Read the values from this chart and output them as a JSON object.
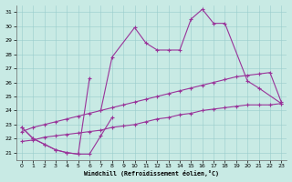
{
  "xlabel": "Windchill (Refroidissement éolien,°C)",
  "background_color": "#c8eae4",
  "grid_color": "#99cccc",
  "line_color": "#993399",
  "xlim": [
    -0.5,
    23.5
  ],
  "ylim": [
    20.5,
    31.5
  ],
  "yticks": [
    21,
    22,
    23,
    24,
    25,
    26,
    27,
    28,
    29,
    30,
    31
  ],
  "xticks": [
    0,
    1,
    2,
    3,
    4,
    5,
    6,
    7,
    8,
    9,
    10,
    11,
    12,
    13,
    14,
    15,
    16,
    17,
    18,
    19,
    20,
    21,
    22,
    23
  ],
  "series": [
    {
      "x": [
        0,
        1,
        2,
        3,
        4,
        5,
        6,
        7,
        8
      ],
      "y": [
        22.8,
        22.0,
        21.6,
        21.2,
        21.0,
        20.9,
        20.9,
        22.2,
        23.5
      ]
    },
    {
      "x": [
        7,
        8,
        10,
        11,
        12,
        13,
        14,
        15,
        16,
        17,
        18,
        20,
        21,
        23
      ],
      "y": [
        24.0,
        27.8,
        29.9,
        28.8,
        28.3,
        28.3,
        28.3,
        30.5,
        31.2,
        30.2,
        30.2,
        26.1,
        25.6,
        24.5
      ]
    },
    {
      "x": [
        0,
        1,
        2,
        3,
        4,
        5,
        6
      ],
      "y": [
        22.8,
        22.0,
        21.6,
        21.2,
        21.0,
        20.9,
        26.3
      ]
    },
    {
      "x": [
        0,
        1,
        2,
        3,
        4,
        5,
        6,
        7,
        8,
        9,
        10,
        11,
        12,
        13,
        14,
        15,
        16,
        17,
        18,
        19,
        20,
        21,
        22,
        23
      ],
      "y": [
        22.5,
        22.8,
        23.0,
        23.2,
        23.4,
        23.6,
        23.8,
        24.0,
        24.2,
        24.4,
        24.6,
        24.8,
        25.0,
        25.2,
        25.4,
        25.6,
        25.8,
        26.0,
        26.2,
        26.4,
        26.5,
        26.6,
        26.7,
        24.6
      ]
    },
    {
      "x": [
        0,
        1,
        2,
        3,
        4,
        5,
        6,
        7,
        8,
        9,
        10,
        11,
        12,
        13,
        14,
        15,
        16,
        17,
        18,
        19,
        20,
        21,
        22,
        23
      ],
      "y": [
        21.8,
        21.9,
        22.1,
        22.2,
        22.3,
        22.4,
        22.5,
        22.6,
        22.8,
        22.9,
        23.0,
        23.2,
        23.4,
        23.5,
        23.7,
        23.8,
        24.0,
        24.1,
        24.2,
        24.3,
        24.4,
        24.4,
        24.4,
        24.5
      ]
    }
  ]
}
